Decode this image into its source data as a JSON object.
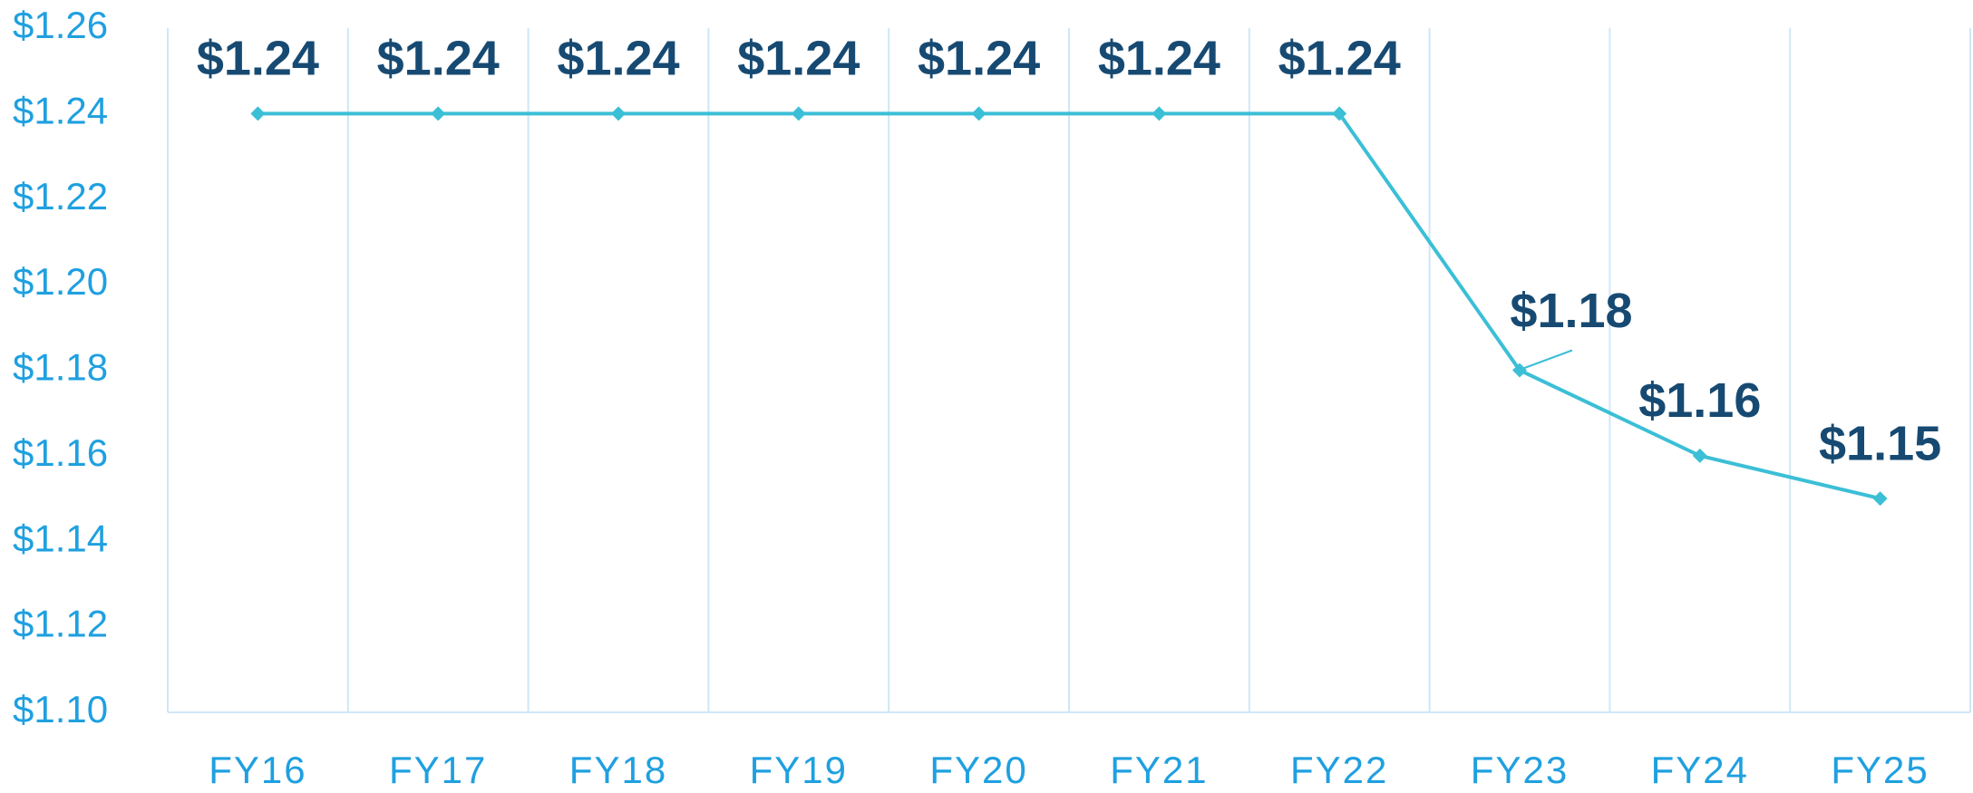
{
  "chart_data": {
    "type": "line",
    "categories": [
      "FY16",
      "FY17",
      "FY18",
      "FY19",
      "FY20",
      "FY21",
      "FY22",
      "FY23",
      "FY24",
      "FY25"
    ],
    "series": [
      {
        "color": "#3bbfd6",
        "values": [
          1.24,
          1.24,
          1.24,
          1.24,
          1.24,
          1.24,
          1.24,
          1.18,
          1.16,
          1.15
        ],
        "value_labels": [
          "$1.24",
          "$1.24",
          "$1.24",
          "$1.24",
          "$1.24",
          "$1.24",
          "$1.24",
          "$1.18",
          "$1.16",
          "$1.15"
        ]
      }
    ],
    "ylim": [
      1.1,
      1.26
    ],
    "yticks": [
      {
        "value": 1.1,
        "label": "$1.10"
      },
      {
        "value": 1.12,
        "label": "$1.12"
      },
      {
        "value": 1.14,
        "label": "$1.14"
      },
      {
        "value": 1.16,
        "label": "$1.16"
      },
      {
        "value": 1.18,
        "label": "$1.18"
      },
      {
        "value": 1.2,
        "label": "$1.20"
      },
      {
        "value": 1.22,
        "label": "$1.22"
      },
      {
        "value": 1.24,
        "label": "$1.24"
      },
      {
        "value": 1.26,
        "label": "$1.26"
      }
    ],
    "vertical_grid": true,
    "grid": false
  }
}
